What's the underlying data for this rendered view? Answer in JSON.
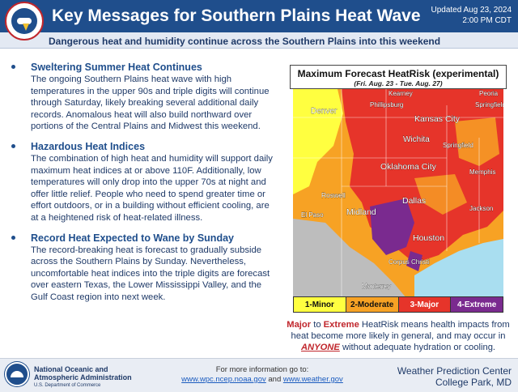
{
  "header": {
    "title": "Key Messages for Southern Plains Heat Wave",
    "updated_line1": "Updated Aug 23, 2024",
    "updated_line2": "2:00 PM CDT",
    "logo_icon": "nws-logo-icon"
  },
  "subtitle": "Dangerous heat and humidity continue across the Southern Plains into this weekend",
  "messages": [
    {
      "title": "Sweltering Summer Heat Continues",
      "body": "The ongoing Southern Plains heat wave with high temperatures in the upper 90s and triple digits will continue through Saturday, likely breaking several additional daily records. Anomalous heat will also build northward over portions of the Central Plains and Midwest this weekend."
    },
    {
      "title": "Hazardous Heat Indices",
      "body": "The combination of high heat and humidity will support daily maximum heat indices at or above 110F. Additionally, low temperatures will only drop into the upper 70s at night and offer little relief. People who need to spend greater time or effort outdoors, or in a building without efficient cooling, are at a heightened risk of heat-related illness."
    },
    {
      "title": "Record Heat Expected to Wane by Sunday",
      "body": "The record-breaking heat is forecast to gradually subside across the Southern Plains by Sunday. Nevertheless, uncomfortable heat indices into the triple digits are forecast over eastern Texas, the Lower Mississippi Valley, and the Gulf Coast region into next week."
    }
  ],
  "map": {
    "title": "Maximum Forecast HeatRisk (experimental)",
    "subtitle": "(Fri. Aug. 23 - Tue. Aug. 27)",
    "cities": {
      "kearney": "Kearney",
      "phillipsburg": "Phillipsburg",
      "peoria": "Peoria",
      "springfield_il": "Springfield",
      "denver": "Denver",
      "kansas_city": "Kansas City",
      "wichita": "Wichita",
      "springfield_mo": "Springfield",
      "oklahoma_city": "Oklahoma City",
      "memphis": "Memphis",
      "roswell": "Roswell",
      "dallas": "Dallas",
      "el_paso": "El Paso",
      "midland": "Midland",
      "jackson": "Jackson",
      "houston": "Houston",
      "corpus_christi": "Corpus Christi",
      "monterrey": "Monterrey"
    },
    "legend": [
      {
        "label": "1-Minor",
        "color": "#ffff40"
      },
      {
        "label": "2-Moderate",
        "color": "#f7a224"
      },
      {
        "label": "3-Major",
        "color": "#e6342a"
      },
      {
        "label": "4-Extreme",
        "color": "#7a2a8f"
      }
    ],
    "note_major": "Major",
    "note_to": " to ",
    "note_extreme": "Extreme",
    "note_mid": " HeatRisk means health impacts from heat become more likely in general, and may occur in ",
    "note_anyone": "ANYONE",
    "note_end": " without adequate hydration or cooling."
  },
  "footer": {
    "noaa_line1": "National Oceanic and",
    "noaa_line2": "Atmospheric Administration",
    "noaa_dept": "U.S. Department of Commerce",
    "more_info": "For more information go to:",
    "link1": "www.wpc.ncep.noaa.gov",
    "and": " and ",
    "link2": "www.weather.gov",
    "wpc_line1": "Weather Prediction Center",
    "wpc_line2": "College Park, MD"
  }
}
